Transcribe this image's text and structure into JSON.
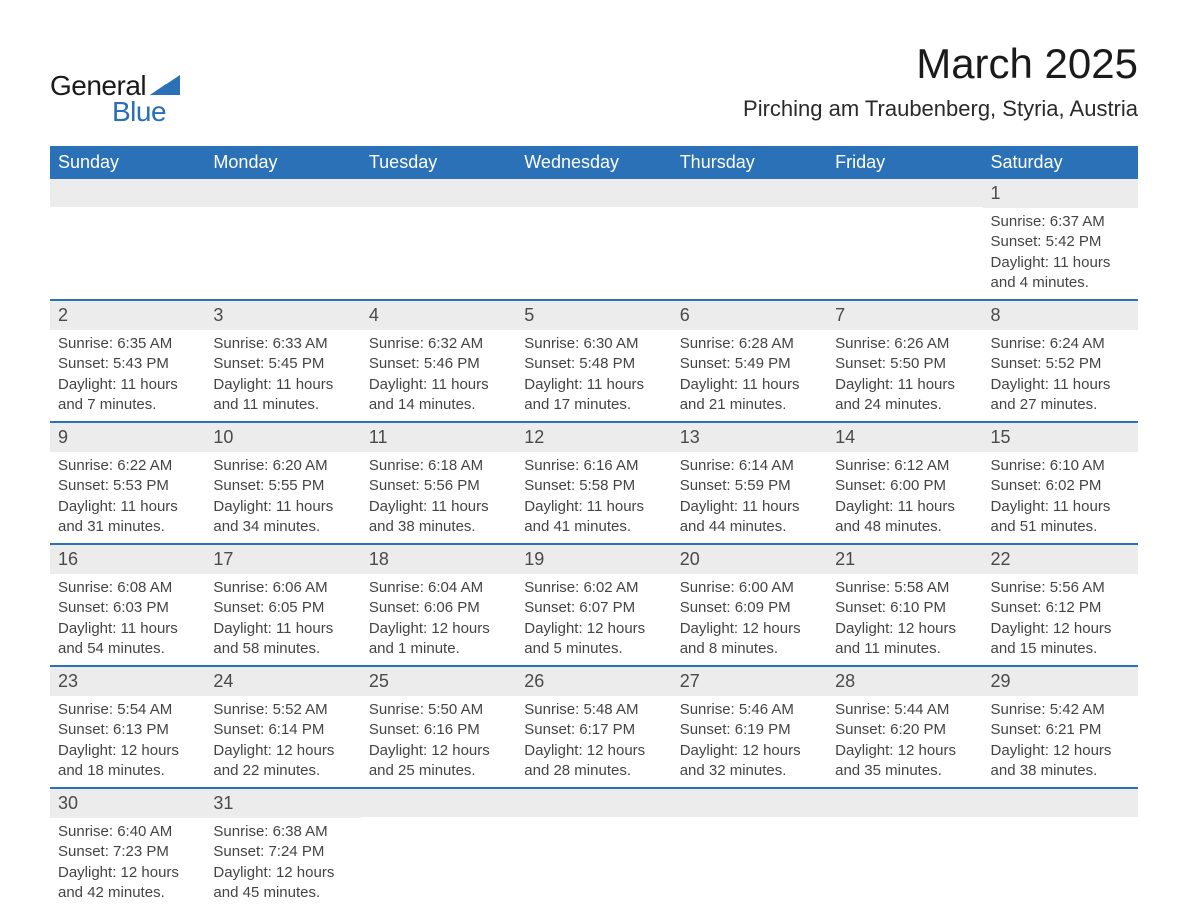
{
  "logo": {
    "text1": "General",
    "text2": "Blue",
    "tri_color": "#2a71b8"
  },
  "title": "March 2025",
  "location": "Pirching am Traubenberg, Styria, Austria",
  "colors": {
    "header_bg": "#2a71b8",
    "header_text": "#ffffff",
    "daynum_bg": "#ececec",
    "row_divider": "#2a71b8",
    "body_text": "#444444"
  },
  "typography": {
    "month_title_fontsize": 42,
    "location_fontsize": 22,
    "dayheader_fontsize": 18,
    "daynum_fontsize": 18,
    "data_fontsize": 15
  },
  "day_headers": [
    "Sunday",
    "Monday",
    "Tuesday",
    "Wednesday",
    "Thursday",
    "Friday",
    "Saturday"
  ],
  "weeks": [
    [
      null,
      null,
      null,
      null,
      null,
      null,
      {
        "n": "1",
        "sunrise": "Sunrise: 6:37 AM",
        "sunset": "Sunset: 5:42 PM",
        "day1": "Daylight: 11 hours",
        "day2": "and 4 minutes."
      }
    ],
    [
      {
        "n": "2",
        "sunrise": "Sunrise: 6:35 AM",
        "sunset": "Sunset: 5:43 PM",
        "day1": "Daylight: 11 hours",
        "day2": "and 7 minutes."
      },
      {
        "n": "3",
        "sunrise": "Sunrise: 6:33 AM",
        "sunset": "Sunset: 5:45 PM",
        "day1": "Daylight: 11 hours",
        "day2": "and 11 minutes."
      },
      {
        "n": "4",
        "sunrise": "Sunrise: 6:32 AM",
        "sunset": "Sunset: 5:46 PM",
        "day1": "Daylight: 11 hours",
        "day2": "and 14 minutes."
      },
      {
        "n": "5",
        "sunrise": "Sunrise: 6:30 AM",
        "sunset": "Sunset: 5:48 PM",
        "day1": "Daylight: 11 hours",
        "day2": "and 17 minutes."
      },
      {
        "n": "6",
        "sunrise": "Sunrise: 6:28 AM",
        "sunset": "Sunset: 5:49 PM",
        "day1": "Daylight: 11 hours",
        "day2": "and 21 minutes."
      },
      {
        "n": "7",
        "sunrise": "Sunrise: 6:26 AM",
        "sunset": "Sunset: 5:50 PM",
        "day1": "Daylight: 11 hours",
        "day2": "and 24 minutes."
      },
      {
        "n": "8",
        "sunrise": "Sunrise: 6:24 AM",
        "sunset": "Sunset: 5:52 PM",
        "day1": "Daylight: 11 hours",
        "day2": "and 27 minutes."
      }
    ],
    [
      {
        "n": "9",
        "sunrise": "Sunrise: 6:22 AM",
        "sunset": "Sunset: 5:53 PM",
        "day1": "Daylight: 11 hours",
        "day2": "and 31 minutes."
      },
      {
        "n": "10",
        "sunrise": "Sunrise: 6:20 AM",
        "sunset": "Sunset: 5:55 PM",
        "day1": "Daylight: 11 hours",
        "day2": "and 34 minutes."
      },
      {
        "n": "11",
        "sunrise": "Sunrise: 6:18 AM",
        "sunset": "Sunset: 5:56 PM",
        "day1": "Daylight: 11 hours",
        "day2": "and 38 minutes."
      },
      {
        "n": "12",
        "sunrise": "Sunrise: 6:16 AM",
        "sunset": "Sunset: 5:58 PM",
        "day1": "Daylight: 11 hours",
        "day2": "and 41 minutes."
      },
      {
        "n": "13",
        "sunrise": "Sunrise: 6:14 AM",
        "sunset": "Sunset: 5:59 PM",
        "day1": "Daylight: 11 hours",
        "day2": "and 44 minutes."
      },
      {
        "n": "14",
        "sunrise": "Sunrise: 6:12 AM",
        "sunset": "Sunset: 6:00 PM",
        "day1": "Daylight: 11 hours",
        "day2": "and 48 minutes."
      },
      {
        "n": "15",
        "sunrise": "Sunrise: 6:10 AM",
        "sunset": "Sunset: 6:02 PM",
        "day1": "Daylight: 11 hours",
        "day2": "and 51 minutes."
      }
    ],
    [
      {
        "n": "16",
        "sunrise": "Sunrise: 6:08 AM",
        "sunset": "Sunset: 6:03 PM",
        "day1": "Daylight: 11 hours",
        "day2": "and 54 minutes."
      },
      {
        "n": "17",
        "sunrise": "Sunrise: 6:06 AM",
        "sunset": "Sunset: 6:05 PM",
        "day1": "Daylight: 11 hours",
        "day2": "and 58 minutes."
      },
      {
        "n": "18",
        "sunrise": "Sunrise: 6:04 AM",
        "sunset": "Sunset: 6:06 PM",
        "day1": "Daylight: 12 hours",
        "day2": "and 1 minute."
      },
      {
        "n": "19",
        "sunrise": "Sunrise: 6:02 AM",
        "sunset": "Sunset: 6:07 PM",
        "day1": "Daylight: 12 hours",
        "day2": "and 5 minutes."
      },
      {
        "n": "20",
        "sunrise": "Sunrise: 6:00 AM",
        "sunset": "Sunset: 6:09 PM",
        "day1": "Daylight: 12 hours",
        "day2": "and 8 minutes."
      },
      {
        "n": "21",
        "sunrise": "Sunrise: 5:58 AM",
        "sunset": "Sunset: 6:10 PM",
        "day1": "Daylight: 12 hours",
        "day2": "and 11 minutes."
      },
      {
        "n": "22",
        "sunrise": "Sunrise: 5:56 AM",
        "sunset": "Sunset: 6:12 PM",
        "day1": "Daylight: 12 hours",
        "day2": "and 15 minutes."
      }
    ],
    [
      {
        "n": "23",
        "sunrise": "Sunrise: 5:54 AM",
        "sunset": "Sunset: 6:13 PM",
        "day1": "Daylight: 12 hours",
        "day2": "and 18 minutes."
      },
      {
        "n": "24",
        "sunrise": "Sunrise: 5:52 AM",
        "sunset": "Sunset: 6:14 PM",
        "day1": "Daylight: 12 hours",
        "day2": "and 22 minutes."
      },
      {
        "n": "25",
        "sunrise": "Sunrise: 5:50 AM",
        "sunset": "Sunset: 6:16 PM",
        "day1": "Daylight: 12 hours",
        "day2": "and 25 minutes."
      },
      {
        "n": "26",
        "sunrise": "Sunrise: 5:48 AM",
        "sunset": "Sunset: 6:17 PM",
        "day1": "Daylight: 12 hours",
        "day2": "and 28 minutes."
      },
      {
        "n": "27",
        "sunrise": "Sunrise: 5:46 AM",
        "sunset": "Sunset: 6:19 PM",
        "day1": "Daylight: 12 hours",
        "day2": "and 32 minutes."
      },
      {
        "n": "28",
        "sunrise": "Sunrise: 5:44 AM",
        "sunset": "Sunset: 6:20 PM",
        "day1": "Daylight: 12 hours",
        "day2": "and 35 minutes."
      },
      {
        "n": "29",
        "sunrise": "Sunrise: 5:42 AM",
        "sunset": "Sunset: 6:21 PM",
        "day1": "Daylight: 12 hours",
        "day2": "and 38 minutes."
      }
    ],
    [
      {
        "n": "30",
        "sunrise": "Sunrise: 6:40 AM",
        "sunset": "Sunset: 7:23 PM",
        "day1": "Daylight: 12 hours",
        "day2": "and 42 minutes."
      },
      {
        "n": "31",
        "sunrise": "Sunrise: 6:38 AM",
        "sunset": "Sunset: 7:24 PM",
        "day1": "Daylight: 12 hours",
        "day2": "and 45 minutes."
      },
      null,
      null,
      null,
      null,
      null
    ]
  ]
}
